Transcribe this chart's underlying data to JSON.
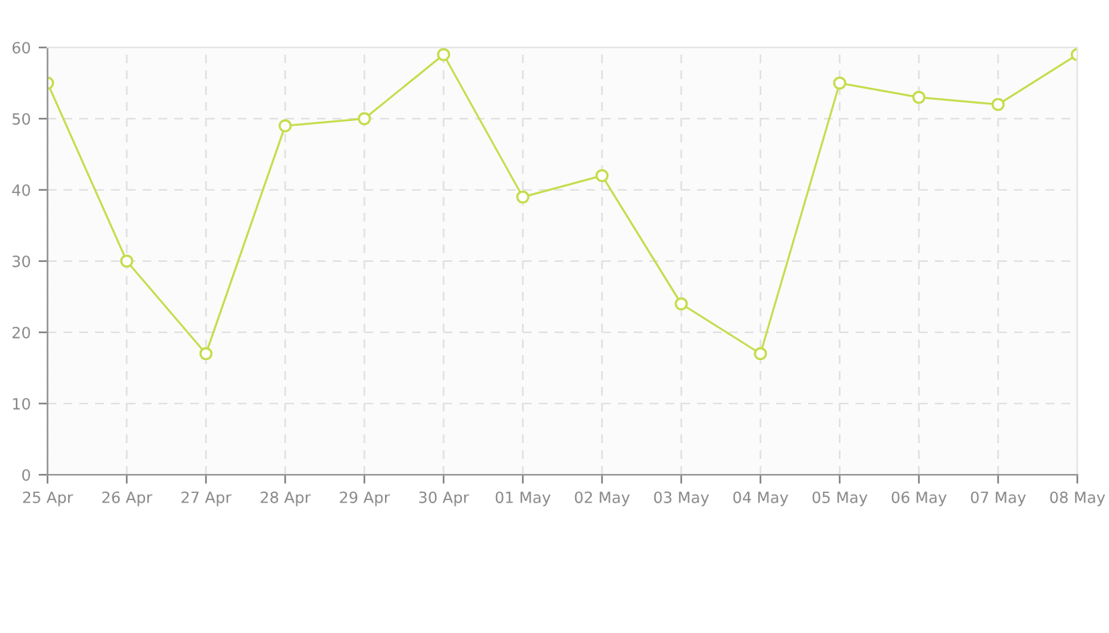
{
  "chart_data": {
    "type": "line",
    "categories": [
      "25 Apr",
      "26 Apr",
      "27 Apr",
      "28 Apr",
      "29 Apr",
      "30 Apr",
      "01 May",
      "02 May",
      "03 May",
      "04 May",
      "05 May",
      "06 May",
      "07 May",
      "08 May"
    ],
    "series": [
      {
        "color": "#c5dc4a",
        "values": [
          55,
          30,
          17,
          49,
          50,
          59,
          39,
          42,
          24,
          17,
          55,
          53,
          52,
          59
        ]
      }
    ],
    "ylim": [
      0,
      60
    ],
    "yticks": [
      0,
      10,
      20,
      30,
      40,
      50,
      60
    ],
    "grid": true,
    "marker": "circle",
    "line_style": "solid",
    "legend": false
  }
}
